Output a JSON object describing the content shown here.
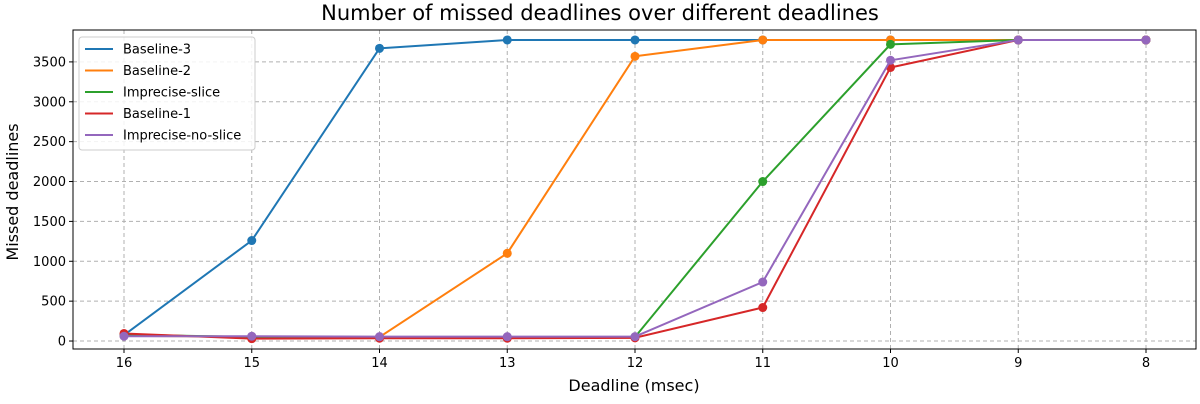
{
  "chart_data": {
    "type": "line",
    "title": "Number of missed deadlines over different deadlines",
    "xlabel": "Deadline (msec)",
    "ylabel": "Missed deadlines",
    "categories": [
      "16",
      "15",
      "14",
      "13",
      "12",
      "11",
      "10",
      "9",
      "8"
    ],
    "ylim": [
      -100,
      3900
    ],
    "yticks": [
      0,
      500,
      1000,
      1500,
      2000,
      2500,
      3000,
      3500
    ],
    "grid": true,
    "legend_position": "top-left",
    "series": [
      {
        "name": "Baseline-3",
        "color": "#1f77b4",
        "values": [
          75,
          1260,
          3670,
          3775,
          3775,
          3775,
          3775,
          3775,
          3775
        ]
      },
      {
        "name": "Baseline-2",
        "color": "#ff7f0e",
        "values": [
          65,
          55,
          50,
          1100,
          3570,
          3775,
          3775,
          3775,
          3775
        ]
      },
      {
        "name": "Imprecise-slice",
        "color": "#2ca02c",
        "values": [
          80,
          50,
          45,
          45,
          50,
          2000,
          3720,
          3775,
          3775
        ]
      },
      {
        "name": "Baseline-1",
        "color": "#d62728",
        "values": [
          95,
          30,
          35,
          35,
          40,
          420,
          3430,
          3775,
          3775
        ]
      },
      {
        "name": "Imprecise-no-slice",
        "color": "#9467bd",
        "values": [
          60,
          60,
          55,
          55,
          55,
          740,
          3520,
          3775,
          3775
        ]
      }
    ]
  }
}
